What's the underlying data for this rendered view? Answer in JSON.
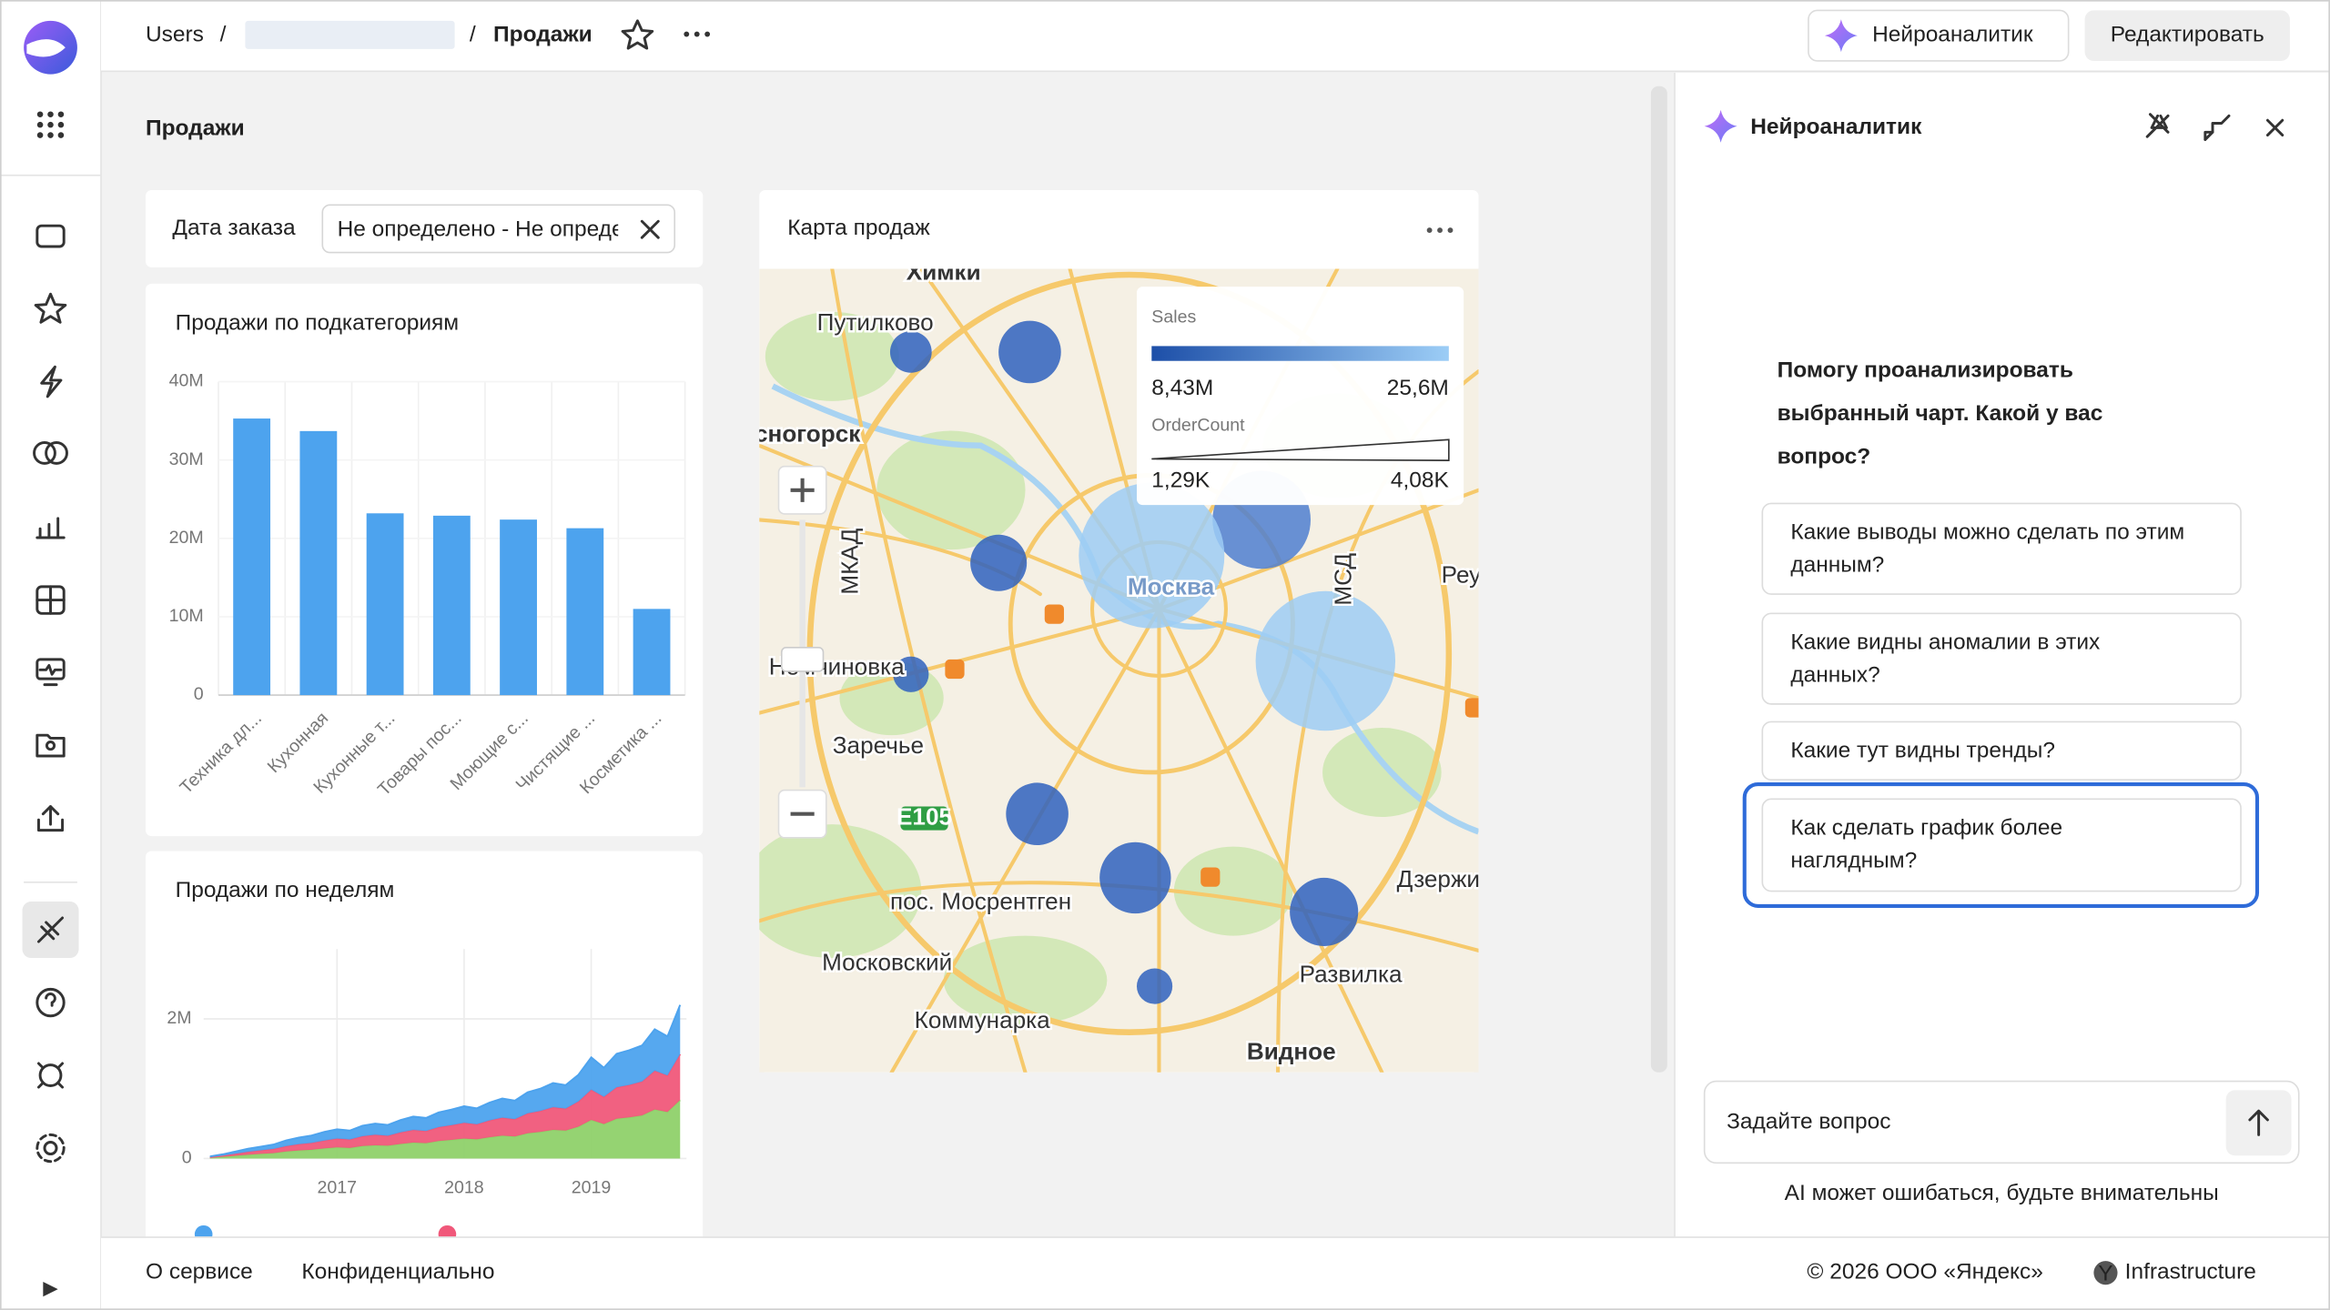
{
  "header": {
    "breadcrumb_root": "Users",
    "breadcrumb_current": "Продажи",
    "assistant_button": "Нейроаналитик",
    "edit_button": "Редактировать"
  },
  "page_title": "Продажи",
  "filter": {
    "label": "Дата заказа",
    "value": "Не определено - Не определено"
  },
  "chart_data": [
    {
      "type": "bar",
      "title": "Продажи по подкатегориям",
      "categories": [
        "Техника дл...",
        "Кухонная",
        "Кухонные т...",
        "Товары пос...",
        "Моющие с...",
        "Чистящие ...",
        "Косметика ..."
      ],
      "values": [
        35300000,
        33700000,
        23200000,
        22900000,
        22400000,
        21300000,
        11000000
      ],
      "color": "#4da3ee",
      "ylim": [
        0,
        40000000
      ],
      "yticks": [
        0,
        {
          "value": 10000000,
          "label": "10M"
        },
        {
          "value": 20000000,
          "label": "20M"
        },
        {
          "value": 30000000,
          "label": "30M"
        },
        {
          "value": 40000000,
          "label": "40M"
        }
      ]
    },
    {
      "type": "area",
      "stacked": true,
      "title": "Продажи по неделям",
      "x": [
        2016.0,
        2016.1,
        2016.2,
        2016.3,
        2016.4,
        2016.5,
        2016.6,
        2016.7,
        2016.8,
        2016.9,
        2017.0,
        2017.1,
        2017.2,
        2017.3,
        2017.4,
        2017.5,
        2017.6,
        2017.7,
        2017.8,
        2017.9,
        2018.0,
        2018.1,
        2018.2,
        2018.3,
        2018.4,
        2018.5,
        2018.6,
        2018.7,
        2018.8,
        2018.9,
        2019.0,
        2019.1,
        2019.2,
        2019.3,
        2019.4,
        2019.5,
        2019.6,
        2019.7
      ],
      "xlim": [
        2015.95,
        2019.75
      ],
      "xticks": [
        2017,
        2018,
        2019
      ],
      "ylim": [
        0,
        3000000
      ],
      "yticks": [
        0,
        {
          "value": 2000000,
          "label": "2M"
        }
      ],
      "series": [
        {
          "color": "#8fd16a",
          "values": [
            11000,
            23000,
            38000,
            53000,
            65000,
            76000,
            99000,
            114000,
            125000,
            144000,
            160000,
            152000,
            179000,
            190000,
            182000,
            209000,
            228000,
            220000,
            251000,
            266000,
            285000,
            274000,
            304000,
            327000,
            315000,
            361000,
            380000,
            410000,
            399000,
            456000,
            551000,
            494000,
            570000,
            589000,
            616000,
            703000,
            665000,
            836000
          ]
        },
        {
          "color": "#f0587a",
          "values": [
            9000,
            18000,
            30000,
            42000,
            51000,
            60000,
            78000,
            90000,
            99000,
            114000,
            126000,
            120000,
            141000,
            150000,
            144000,
            165000,
            180000,
            174000,
            198000,
            210000,
            225000,
            216000,
            240000,
            258000,
            249000,
            285000,
            300000,
            324000,
            315000,
            360000,
            435000,
            390000,
            450000,
            465000,
            486000,
            555000,
            525000,
            660000
          ]
        },
        {
          "color": "#4da3ee",
          "values": [
            10000,
            19000,
            32000,
            45000,
            54000,
            64000,
            83000,
            96000,
            106000,
            122000,
            134000,
            128000,
            150000,
            160000,
            154000,
            176000,
            192000,
            186000,
            211000,
            224000,
            240000,
            230000,
            256000,
            275000,
            266000,
            304000,
            320000,
            346000,
            336000,
            384000,
            464000,
            416000,
            480000,
            496000,
            518000,
            592000,
            560000,
            704000
          ]
        }
      ]
    }
  ],
  "map": {
    "title": "Карта продаж",
    "legend": {
      "color_title": "Sales",
      "color_min": "8,43M",
      "color_max": "25,6M",
      "size_title": "OrderCount",
      "size_min": "1,29K",
      "size_max": "4,08K"
    },
    "labels": [
      "Химки",
      "Путилково",
      "Красногорск",
      "Москва",
      "Реутов",
      "Немчиновка",
      "Заречье",
      "пос. Мосрентген",
      "Московский",
      "Коммунарка",
      "Видное",
      "Развилка",
      "Дзержинский",
      "E105",
      "МКАД",
      "МСД"
    ]
  },
  "assistant": {
    "title": "Нейроаналитик",
    "prompt": [
      "Помогу проанализировать",
      "выбранный чарт. Какой у вас",
      "вопрос?"
    ],
    "suggestions": [
      [
        "Какие выводы можно сделать по этим",
        "данным?"
      ],
      [
        "Какие видны аномалии в этих",
        "данных?"
      ],
      [
        "Какие тут видны тренды?"
      ],
      [
        "Как сделать график более",
        "наглядным?"
      ]
    ],
    "placeholder": "Задайте вопрос",
    "disclaimer": "AI может ошибаться, будьте внимательны"
  },
  "footer": {
    "about": "О сервисе",
    "privacy": "Конфиденциально",
    "copyright": "© 2026 ООО «Яндекс»",
    "infrastructure": "Infrastructure"
  }
}
